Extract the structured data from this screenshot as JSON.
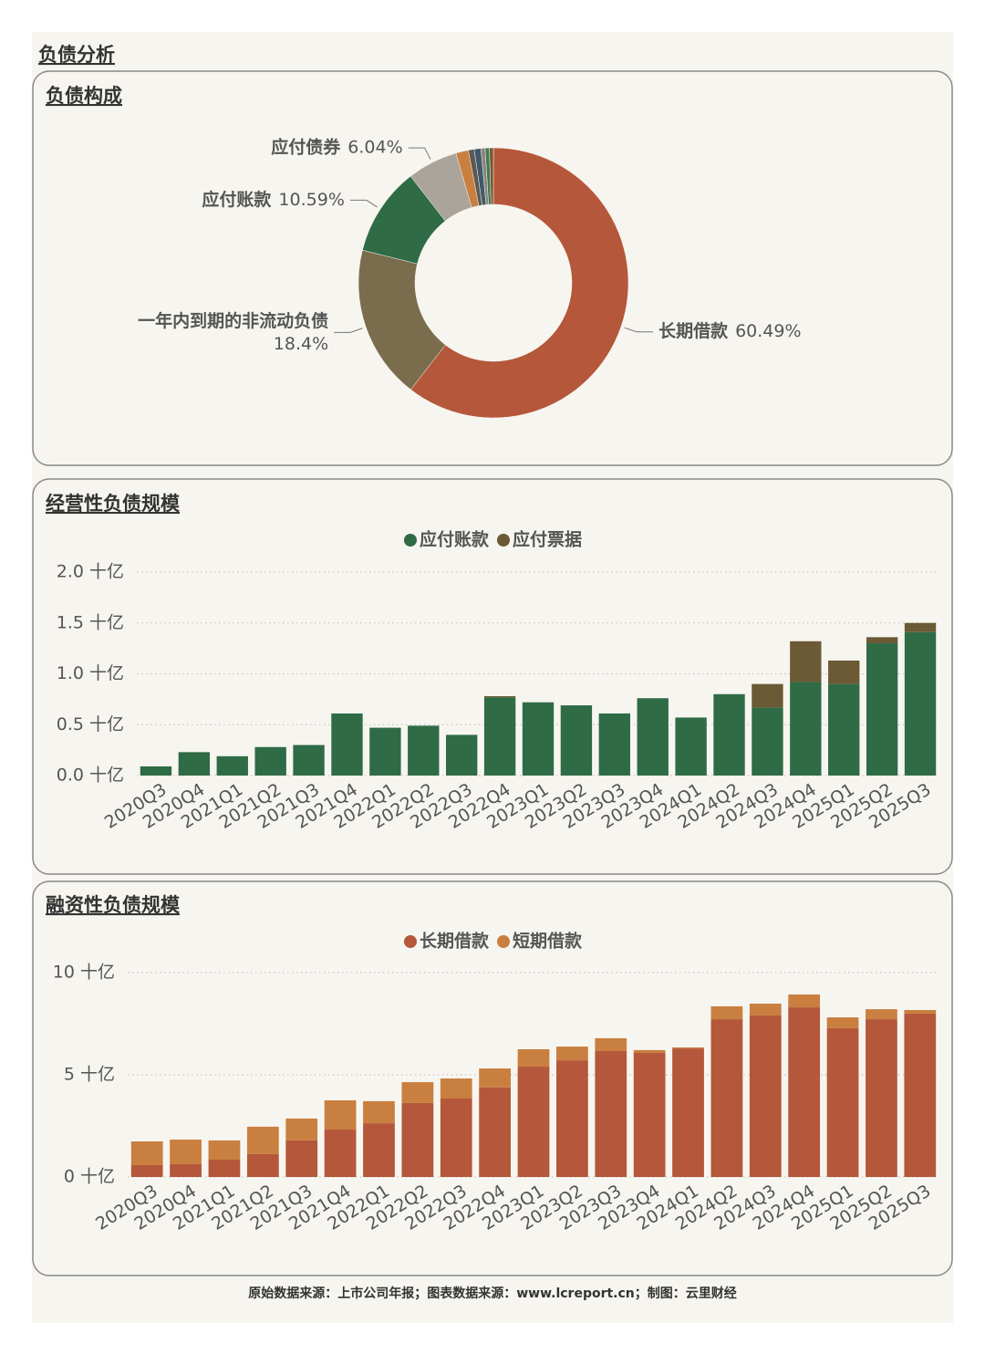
{
  "title": "负债分析",
  "footer": "原始数据来源：上市公司年报；图表数据来源：www.lcreport.cn；制图：云里财经",
  "chart_data": [
    {
      "type": "pie",
      "title": "负债构成",
      "categories": [
        "长期借款",
        "一年内到期的非流动负债",
        "应付账款",
        "应付债券",
        null,
        null,
        null,
        null,
        null,
        null
      ],
      "values": [
        60.49,
        18.4,
        10.59,
        6.04,
        1.5,
        0.7,
        0.8,
        0.5,
        0.5,
        0.48
      ],
      "value_labels": [
        "60.49%",
        "18.4%",
        "10.59%",
        "6.04%",
        null,
        null,
        null,
        null,
        null,
        null
      ],
      "colors": [
        "#b5573a",
        "#7a6d4e",
        "#2f6b45",
        "#aaa49a",
        "#c97f3f",
        "#5e5a52",
        "#41586b",
        "#8a8578",
        "#3f7a55",
        "#7a5a30"
      ]
    },
    {
      "type": "bar",
      "title": "经营性负债规模",
      "stacked": true,
      "grid": true,
      "categories": [
        "2020Q3",
        "2020Q4",
        "2021Q1",
        "2021Q2",
        "2021Q3",
        "2021Q4",
        "2022Q1",
        "2022Q2",
        "2022Q3",
        "2022Q4",
        "2023Q1",
        "2023Q2",
        "2023Q3",
        "2023Q4",
        "2024Q1",
        "2024Q2",
        "2024Q3",
        "2024Q4",
        "2025Q1",
        "2025Q2",
        "2025Q3"
      ],
      "series": [
        {
          "name": "应付账款",
          "color": "#2f6b45",
          "values": [
            0.09,
            0.23,
            0.19,
            0.28,
            0.3,
            0.61,
            0.47,
            0.49,
            0.4,
            0.77,
            0.72,
            0.69,
            0.61,
            0.76,
            0.57,
            0.8,
            0.67,
            0.92,
            0.9,
            1.3,
            1.41
          ]
        },
        {
          "name": "应付票据",
          "color": "#6b5a35",
          "values": [
            0,
            0,
            0,
            0,
            0,
            0,
            0,
            0,
            0,
            0.01,
            0,
            0,
            0,
            0,
            0,
            0,
            0.23,
            0.4,
            0.23,
            0.06,
            0.09
          ]
        }
      ],
      "ylim": [
        0,
        2.0
      ],
      "yticks": [
        {
          "value": 0,
          "label": "0.0 十亿"
        },
        {
          "value": 0.5,
          "label": "0.5 十亿"
        },
        {
          "value": 1.0,
          "label": "1.0 十亿"
        },
        {
          "value": 1.5,
          "label": "1.5 十亿"
        },
        {
          "value": 2.0,
          "label": "2.0 十亿"
        }
      ]
    },
    {
      "type": "bar",
      "title": "融资性负债规模",
      "stacked": true,
      "grid": true,
      "categories": [
        "2020Q3",
        "2020Q4",
        "2021Q1",
        "2021Q2",
        "2021Q3",
        "2021Q4",
        "2022Q1",
        "2022Q2",
        "2022Q3",
        "2022Q4",
        "2023Q1",
        "2023Q2",
        "2023Q3",
        "2023Q4",
        "2024Q1",
        "2024Q2",
        "2024Q3",
        "2024Q4",
        "2025Q1",
        "2025Q2",
        "2025Q3"
      ],
      "series": [
        {
          "name": "长期借款",
          "color": "#b5573a",
          "values": [
            0.58,
            0.63,
            0.85,
            1.12,
            1.79,
            2.32,
            2.63,
            3.62,
            3.84,
            4.38,
            5.4,
            5.71,
            6.16,
            6.07,
            6.29,
            7.72,
            7.9,
            8.3,
            7.28,
            7.72,
            7.99
          ]
        },
        {
          "name": "短期借款",
          "color": "#c97f3f",
          "values": [
            1.16,
            1.2,
            0.94,
            1.34,
            1.07,
            1.43,
            1.08,
            1.02,
            0.98,
            0.93,
            0.85,
            0.67,
            0.63,
            0.14,
            0.05,
            0.63,
            0.58,
            0.63,
            0.53,
            0.49,
            0.18
          ]
        }
      ],
      "ylim": [
        0,
        10
      ],
      "yticks": [
        {
          "value": 0,
          "label": "0 十亿"
        },
        {
          "value": 5,
          "label": "5 十亿"
        },
        {
          "value": 10,
          "label": "10 十亿"
        }
      ]
    }
  ]
}
